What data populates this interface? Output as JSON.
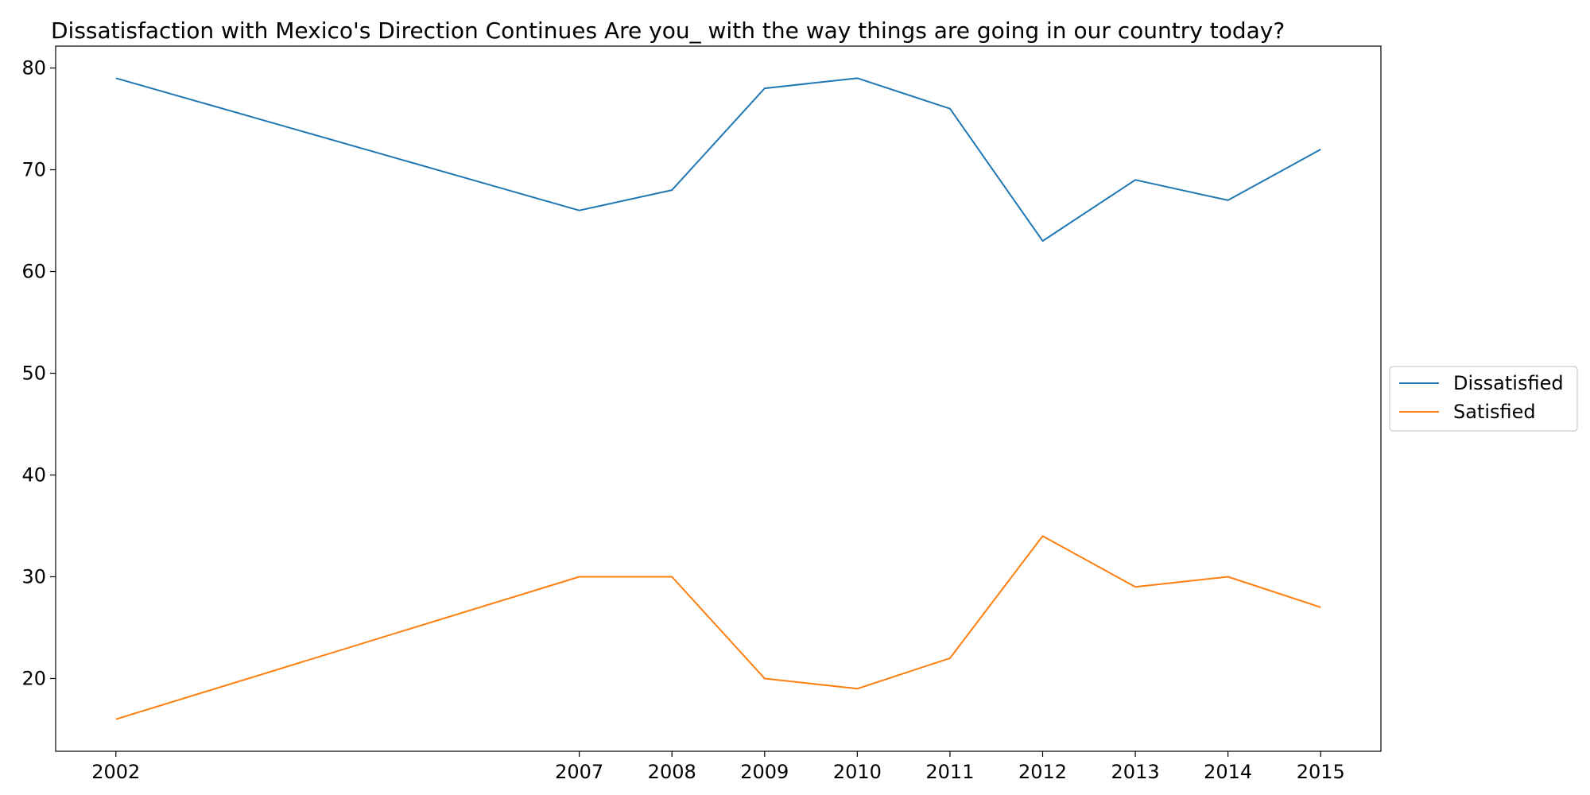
{
  "chart_data": {
    "type": "line",
    "title": "Dissatisfaction with Mexico's Direction Continues Are you_ with the way things are going in our country today?",
    "xlabel": "",
    "ylabel": "",
    "x": [
      2002,
      2007,
      2008,
      2009,
      2010,
      2011,
      2012,
      2013,
      2014,
      2015
    ],
    "series": [
      {
        "name": "Dissatisfied",
        "values": [
          79,
          66,
          68,
          78,
          79,
          76,
          63,
          69,
          67,
          72
        ],
        "color": "#1f77b4"
      },
      {
        "name": "Satisfied",
        "values": [
          16,
          30,
          30,
          20,
          19,
          22,
          34,
          29,
          30,
          27
        ],
        "color": "#ff7f0e"
      }
    ],
    "xticks": [
      "2002",
      "2007",
      "2008",
      "2009",
      "2010",
      "2011",
      "2012",
      "2013",
      "2014",
      "2015"
    ],
    "yticks": [
      "20",
      "30",
      "40",
      "50",
      "60",
      "70",
      "80"
    ],
    "ylim": [
      12.85,
      82.15
    ],
    "grid": false,
    "legend_position": "center-right"
  }
}
